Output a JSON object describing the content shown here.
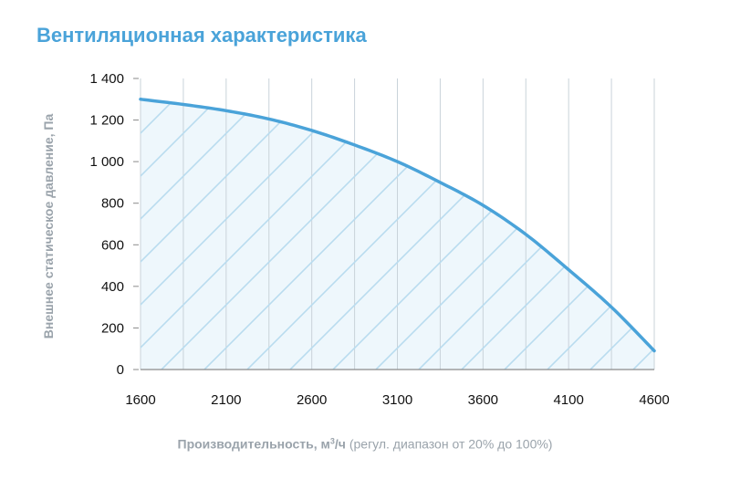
{
  "title": "Вентиляционная характеристика",
  "colors": {
    "title": "#4aa3d9",
    "curve": "#4aa3d9",
    "hatch": "#b9dcef",
    "fill": "#eef7fc",
    "grid": "#c9d3da",
    "axis_label": "#9aa3ab"
  },
  "x_label": {
    "main": "Производительность, м",
    "sup": "3",
    "unit": "/ч",
    "note": "(регул. диапазон от 20% до 100%)"
  },
  "chart_data": {
    "type": "area",
    "title": "Вентиляционная характеристика",
    "xlabel": "Производительность, м3/ч (регул. диапазон от 20% до 100%)",
    "ylabel": "Внешнее статическое давление, Па",
    "xlim": [
      1600,
      4600
    ],
    "ylim": [
      0,
      1400
    ],
    "x_ticks": [
      1600,
      2100,
      2600,
      3100,
      3600,
      4100,
      4600
    ],
    "x_tick_labels": [
      "1600",
      "2100",
      "2600",
      "3100",
      "3600",
      "4100",
      "4600"
    ],
    "y_ticks": [
      0,
      200,
      400,
      600,
      800,
      1000,
      1200,
      1400
    ],
    "y_tick_labels": [
      "0",
      "200",
      "400",
      "600",
      "800",
      "1 000",
      "1 200",
      "1 400"
    ],
    "x_gridlines": [
      1600,
      1850,
      2100,
      2350,
      2600,
      2850,
      3100,
      3350,
      3600,
      3850,
      4100,
      4350,
      4600
    ],
    "grid": true,
    "legend": "none",
    "series": [
      {
        "x": [
          1600,
          1850,
          2100,
          2350,
          2600,
          2850,
          3100,
          3350,
          3600,
          3850,
          4100,
          4350,
          4600
        ],
        "y": [
          1300,
          1275,
          1245,
          1205,
          1150,
          1080,
          1000,
          900,
          790,
          650,
          480,
          300,
          90
        ]
      }
    ]
  }
}
